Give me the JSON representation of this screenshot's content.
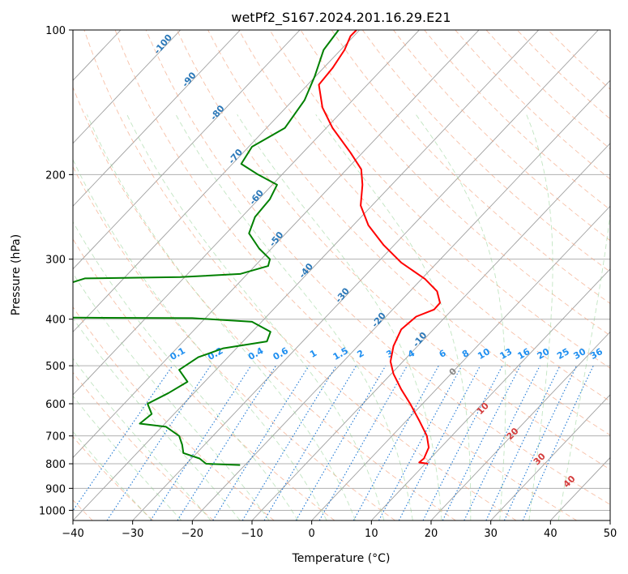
{
  "chart_data": {
    "type": "line",
    "title": "wetPf2_S167.2024.201.16.29.E21",
    "xlabel": "Temperature (°C)",
    "ylabel": "Pressure (hPa)",
    "xlim": [
      -40,
      50
    ],
    "ylim": [
      1050,
      100
    ],
    "y_scale": "log",
    "x_ticks": [
      -40,
      -30,
      -20,
      -10,
      0,
      10,
      20,
      30,
      40,
      50
    ],
    "y_ticks": [
      100,
      200,
      300,
      400,
      500,
      600,
      700,
      800,
      900,
      1000
    ],
    "grid": true,
    "series": [
      {
        "color": "#ff0000",
        "points": [
          [
            19.5,
            800
          ],
          [
            18,
            795
          ],
          [
            18.8,
            780
          ],
          [
            19.6,
            740
          ],
          [
            19.3,
            700
          ],
          [
            18,
            650
          ],
          [
            16.5,
            600
          ],
          [
            15,
            560
          ],
          [
            13.7,
            520
          ],
          [
            13.2,
            490
          ],
          [
            13.7,
            455
          ],
          [
            15,
            420
          ],
          [
            17.5,
            395
          ],
          [
            20.5,
            382
          ],
          [
            21.5,
            370
          ],
          [
            21,
            350
          ],
          [
            19,
            330
          ],
          [
            15,
            305
          ],
          [
            12,
            280
          ],
          [
            9.5,
            255
          ],
          [
            8.2,
            232
          ],
          [
            8.5,
            210
          ],
          [
            8.3,
            195
          ],
          [
            6.5,
            180
          ],
          [
            3.5,
            160
          ],
          [
            1.8,
            145
          ],
          [
            1.2,
            130
          ],
          [
            3.5,
            120
          ],
          [
            5.5,
            110
          ],
          [
            6.5,
            103
          ],
          [
            7.5,
            100
          ]
        ]
      },
      {
        "color": "#008000",
        "points": [
          [
            -12,
            805
          ],
          [
            -17.7,
            800
          ],
          [
            -18.8,
            780
          ],
          [
            -21.5,
            760
          ],
          [
            -21.7,
            730
          ],
          [
            -22.2,
            700
          ],
          [
            -24.4,
            670
          ],
          [
            -28.8,
            660
          ],
          [
            -26.8,
            630
          ],
          [
            -27.5,
            600
          ],
          [
            -24,
            570
          ],
          [
            -20.8,
            540
          ],
          [
            -22.2,
            510
          ],
          [
            -19,
            480
          ],
          [
            -14.8,
            460
          ],
          [
            -7.5,
            445
          ],
          [
            -6.9,
            425
          ],
          [
            -10,
            405
          ],
          [
            -20,
            398
          ],
          [
            -40,
            397
          ]
        ]
      },
      {
        "color": "#008000",
        "points": [
          [
            -40,
            335
          ],
          [
            -38,
            329
          ],
          [
            -22,
            327
          ],
          [
            -12,
            322
          ],
          [
            -7.3,
            310
          ],
          [
            -7,
            300
          ],
          [
            -8.8,
            285
          ],
          [
            -10.5,
            265
          ],
          [
            -9.5,
            245
          ],
          [
            -7,
            225
          ],
          [
            -5.8,
            210
          ],
          [
            -9,
            200
          ],
          [
            -11.8,
            190
          ],
          [
            -10,
            175
          ],
          [
            -4.5,
            160
          ],
          [
            -1.2,
            140
          ],
          [
            0.5,
            125
          ],
          [
            2,
            110
          ],
          [
            4.5,
            100
          ]
        ]
      }
    ],
    "annotations": {
      "isotherm_labels": [
        "-100",
        "-90",
        "-80",
        "-70",
        "-60",
        "-50",
        "-40",
        "-30",
        "-20",
        "-10"
      ],
      "mixing_ratio_labels": [
        "0.1",
        "0.2",
        "0.4",
        "0.6",
        "1",
        "1.5",
        "2",
        "3",
        "4",
        "6",
        "8",
        "10",
        "13",
        "16",
        "20",
        "25",
        "30",
        "36"
      ],
      "moist_adiabat_labels": [
        "0",
        "10",
        "20",
        "30",
        "40"
      ]
    }
  }
}
